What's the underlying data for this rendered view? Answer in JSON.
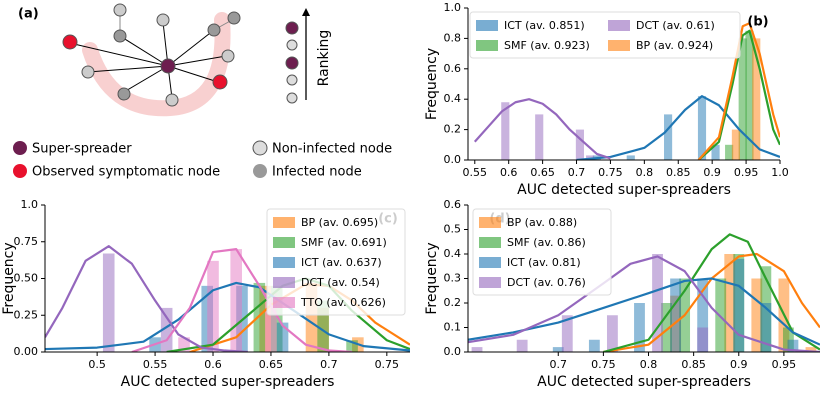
{
  "diagram": {
    "panel": "(a)",
    "ranking": "Ranking",
    "legend": [
      "Super-spreader",
      "Observed symptomatic node",
      "Non-infected node",
      "Infected node"
    ]
  },
  "chart_data": [
    {
      "type": "histogram",
      "title": "(b)",
      "xlabel": "AUC detected super-spreaders",
      "ylabel": "Frequency",
      "legend": "upper right",
      "legend_columns": 2,
      "xlim": [
        0.54,
        1.0
      ],
      "ylim": [
        0,
        1.0
      ],
      "xticks": [
        0.55,
        0.6,
        0.65,
        0.7,
        0.75,
        0.8,
        0.85,
        0.9,
        0.95,
        {
          "value": 1.0,
          "label": "1.0"
        }
      ],
      "yticks": [
        {
          "value": 0,
          "label": "0.0"
        },
        0.2,
        0.4,
        0.6,
        0.8,
        {
          "value": 1.0,
          "label": "1.0"
        }
      ],
      "series": [
        {
          "name": "ICT (av. 0.851)",
          "color": "#1f77b4",
          "x": [
            0.73,
            0.78,
            0.835,
            0.885,
            0.905
          ],
          "values": [
            0.03,
            0.03,
            0.3,
            0.42,
            0.1
          ],
          "curve_x": [
            0.7,
            0.75,
            0.8,
            0.83,
            0.86,
            0.885,
            0.91,
            0.94,
            0.97,
            1.0
          ],
          "curve_y": [
            0.0,
            0.02,
            0.08,
            0.18,
            0.33,
            0.42,
            0.36,
            0.2,
            0.07,
            0.02
          ]
        },
        {
          "name": "SMF (av. 0.923)",
          "color": "#2ca02c",
          "x": [
            0.925,
            0.945,
            0.955
          ],
          "values": [
            0.1,
            0.8,
            0.85
          ],
          "curve_x": [
            0.88,
            0.91,
            0.93,
            0.945,
            0.955,
            0.97,
            0.99,
            1.0
          ],
          "curve_y": [
            0.0,
            0.12,
            0.5,
            0.82,
            0.85,
            0.6,
            0.2,
            0.1
          ]
        },
        {
          "name": "DCT (av. 0.61)",
          "color": "#9467bd",
          "x": [
            0.595,
            0.645,
            0.705,
            0.72
          ],
          "values": [
            0.38,
            0.3,
            0.2,
            0.03
          ],
          "curve_x": [
            0.55,
            0.57,
            0.59,
            0.61,
            0.63,
            0.65,
            0.67,
            0.69,
            0.71,
            0.73,
            0.75
          ],
          "curve_y": [
            0.12,
            0.22,
            0.32,
            0.38,
            0.4,
            0.37,
            0.3,
            0.2,
            0.12,
            0.04,
            0.01
          ]
        },
        {
          "name": "BP (av. 0.924)",
          "color": "#ff7f0e",
          "x": [
            0.935,
            0.965
          ],
          "values": [
            0.2,
            0.8
          ],
          "curve_x": [
            0.88,
            0.91,
            0.93,
            0.945,
            0.955,
            0.97,
            0.99,
            1.0
          ],
          "curve_y": [
            0.0,
            0.15,
            0.55,
            0.88,
            0.9,
            0.7,
            0.3,
            0.15
          ]
        }
      ]
    },
    {
      "type": "histogram",
      "title": "(c)",
      "xlabel": "AUC detected super-spreaders",
      "ylabel": "Frequency",
      "legend": "upper right",
      "legend_columns": 1,
      "xlim": [
        0.455,
        0.77
      ],
      "ylim": [
        0,
        1.0
      ],
      "xticks": [
        0.5,
        0.55,
        0.6,
        0.65,
        0.7,
        0.75
      ],
      "yticks": [
        {
          "value": 0,
          "label": "0.00"
        },
        0.25,
        {
          "value": 0.5,
          "label": "0.50"
        },
        0.75,
        {
          "value": 1.0,
          "label": "1.0"
        }
      ],
      "series": [
        {
          "name": "BP (av. 0.695)",
          "color": "#ff7f0e",
          "x": [
            0.645,
            0.685,
            0.695,
            0.725
          ],
          "values": [
            0.45,
            0.47,
            0.3,
            0.1
          ],
          "curve_x": [
            0.58,
            0.62,
            0.65,
            0.68,
            0.7,
            0.72,
            0.74,
            0.77
          ],
          "curve_y": [
            0,
            0.1,
            0.32,
            0.46,
            0.45,
            0.35,
            0.2,
            0.05
          ]
        },
        {
          "name": "SMF (av. 0.691)",
          "color": "#2ca02c",
          "x": [
            0.64,
            0.655,
            0.695,
            0.72
          ],
          "values": [
            0.47,
            0.45,
            0.35,
            0.08
          ],
          "curve_x": [
            0.56,
            0.6,
            0.63,
            0.66,
            0.68,
            0.7,
            0.72,
            0.75,
            0.77
          ],
          "curve_y": [
            0,
            0.05,
            0.25,
            0.45,
            0.5,
            0.45,
            0.28,
            0.08,
            0.02
          ]
        },
        {
          "name": "ICT (av. 0.637)",
          "color": "#1f77b4",
          "x": [
            0.55,
            0.595,
            0.625,
            0.66
          ],
          "values": [
            0.1,
            0.45,
            0.45,
            0.2
          ],
          "curve_x": [
            0.455,
            0.5,
            0.54,
            0.57,
            0.6,
            0.62,
            0.64,
            0.67,
            0.7,
            0.73,
            0.77
          ],
          "curve_y": [
            0.02,
            0.03,
            0.07,
            0.22,
            0.42,
            0.47,
            0.44,
            0.28,
            0.12,
            0.04,
            0.01
          ]
        },
        {
          "name": "DCT (av. 0.54)",
          "color": "#9467bd",
          "x": [
            0.51,
            0.56
          ],
          "values": [
            0.67,
            0.3
          ],
          "curve_x": [
            0.455,
            0.47,
            0.49,
            0.51,
            0.53,
            0.55,
            0.57,
            0.59,
            0.61,
            0.63
          ],
          "curve_y": [
            0.1,
            0.3,
            0.62,
            0.72,
            0.6,
            0.35,
            0.12,
            0.03,
            0.01,
            0
          ]
        },
        {
          "name": "TTO (av. 0.626)",
          "color": "#e377c2",
          "x": [
            0.575,
            0.6,
            0.62,
            0.65
          ],
          "values": [
            0.1,
            0.62,
            0.7,
            0.4
          ],
          "curve_x": [
            0.53,
            0.56,
            0.58,
            0.6,
            0.62,
            0.64,
            0.66,
            0.68,
            0.7,
            0.72
          ],
          "curve_y": [
            0,
            0.08,
            0.3,
            0.68,
            0.7,
            0.45,
            0.18,
            0.05,
            0.01,
            0
          ]
        }
      ]
    },
    {
      "type": "histogram",
      "title": "(d)",
      "xlabel": "AUC detected super-spreaders",
      "ylabel": "Frequency",
      "legend": "upper left",
      "legend_columns": 1,
      "xlim": [
        0.6,
        0.99
      ],
      "ylim": [
        0,
        0.6
      ],
      "xticks": [
        0.7,
        0.75,
        0.8,
        0.85,
        0.9,
        0.95
      ],
      "yticks": [
        {
          "value": 0,
          "label": "0.0"
        },
        0.1,
        0.2,
        0.3,
        0.4,
        0.5,
        0.6
      ],
      "series": [
        {
          "name": "BP (av. 0.88)",
          "color": "#ff7f0e",
          "x": [
            0.83,
            0.89,
            0.92,
            0.95,
            0.98
          ],
          "values": [
            0.23,
            0.4,
            0.3,
            0.3,
            0.02
          ],
          "curve_x": [
            0.75,
            0.8,
            0.84,
            0.87,
            0.9,
            0.92,
            0.95,
            0.97,
            0.99
          ],
          "curve_y": [
            0,
            0.03,
            0.15,
            0.3,
            0.39,
            0.4,
            0.33,
            0.2,
            0.1
          ]
        },
        {
          "name": "SMF (av. 0.86)",
          "color": "#2ca02c",
          "x": [
            0.82,
            0.84,
            0.88,
            0.9,
            0.93,
            0.955
          ],
          "values": [
            0.2,
            0.3,
            0.3,
            0.4,
            0.35,
            0.1
          ],
          "curve_x": [
            0.75,
            0.8,
            0.84,
            0.87,
            0.89,
            0.91,
            0.93,
            0.96,
            0.99
          ],
          "curve_y": [
            0,
            0.05,
            0.25,
            0.42,
            0.48,
            0.45,
            0.3,
            0.08,
            0.01
          ]
        },
        {
          "name": "ICT (av. 0.81)",
          "color": "#1f77b4",
          "x": [
            0.7,
            0.74,
            0.79,
            0.83,
            0.86,
            0.9,
            0.93,
            0.96
          ],
          "values": [
            0.02,
            0.05,
            0.2,
            0.3,
            0.3,
            0.38,
            0.2,
            0.05
          ],
          "curve_x": [
            0.6,
            0.65,
            0.7,
            0.75,
            0.8,
            0.84,
            0.87,
            0.9,
            0.93,
            0.96,
            0.99
          ],
          "curve_y": [
            0.05,
            0.08,
            0.12,
            0.18,
            0.24,
            0.29,
            0.3,
            0.27,
            0.18,
            0.08,
            0.03
          ]
        },
        {
          "name": "DCT (av. 0.76)",
          "color": "#9467bd",
          "x": [
            0.61,
            0.66,
            0.71,
            0.76,
            0.81,
            0.86
          ],
          "values": [
            0.02,
            0.05,
            0.15,
            0.15,
            0.4,
            0.1
          ],
          "curve_x": [
            0.6,
            0.65,
            0.7,
            0.75,
            0.78,
            0.81,
            0.84,
            0.87,
            0.9,
            0.95,
            0.99
          ],
          "curve_y": [
            0.04,
            0.07,
            0.15,
            0.28,
            0.36,
            0.39,
            0.33,
            0.18,
            0.07,
            0.01,
            0
          ]
        }
      ]
    }
  ]
}
